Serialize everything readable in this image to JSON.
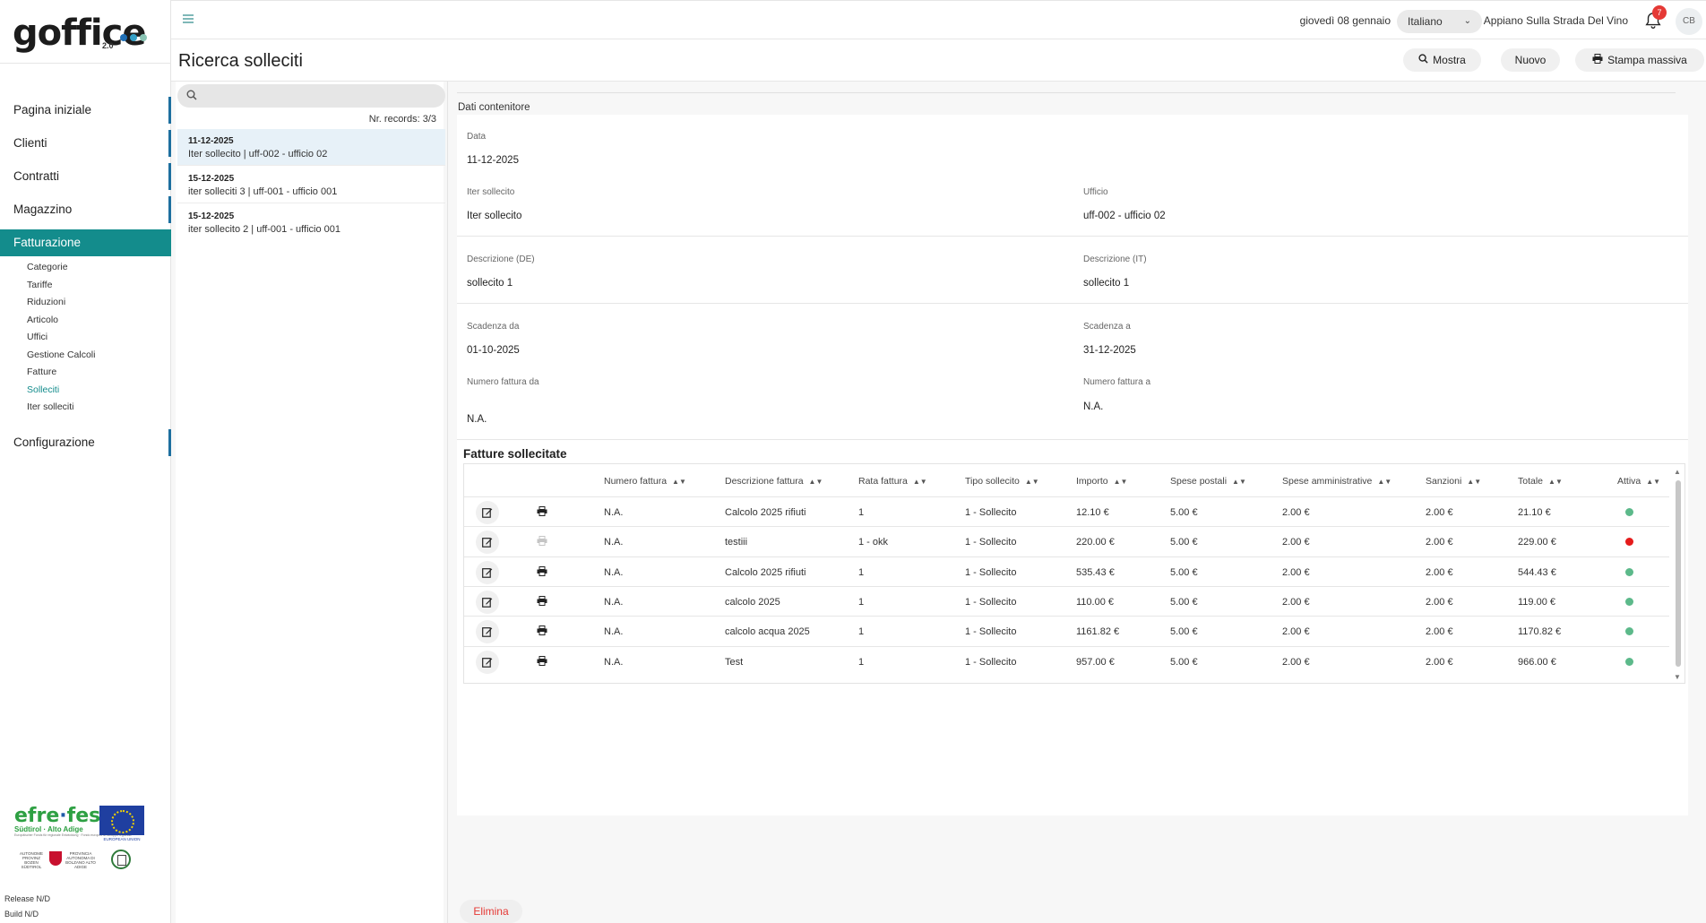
{
  "brand": {
    "name": "goffice",
    "version": "2.0",
    "dot_colors": [
      "#1f6fb5",
      "#35a0c7",
      "#8ac4b4"
    ]
  },
  "nav": {
    "items": [
      {
        "label": "Pagina iniziale",
        "bar": true,
        "active": false
      },
      {
        "label": "Clienti",
        "bar": true,
        "active": false
      },
      {
        "label": "Contratti",
        "bar": true,
        "active": false
      },
      {
        "label": "Magazzino",
        "bar": true,
        "active": false
      },
      {
        "label": "Fatturazione",
        "bar": false,
        "active": true
      }
    ],
    "sub_items": [
      {
        "label": "Categorie",
        "active": false
      },
      {
        "label": "Tariffe",
        "active": false
      },
      {
        "label": "Riduzioni",
        "active": false
      },
      {
        "label": "Articolo",
        "active": false
      },
      {
        "label": "Uffici",
        "active": false
      },
      {
        "label": "Gestione Calcoli",
        "active": false
      },
      {
        "label": "Fatture",
        "active": false
      },
      {
        "label": "Solleciti",
        "active": true
      },
      {
        "label": "Iter solleciti",
        "active": false
      }
    ],
    "config_label": "Configurazione"
  },
  "footer": {
    "efre_green": "efre",
    "efre_sep": "·",
    "efre_blue": "fesr",
    "efre_region": "Südtirol · Alto Adige",
    "efre_tiny": "Europäischer Fonds für regionale Entwicklung · Fondo europeo di sviluppo regionale",
    "eu_caption": "EUROPEAN UNION",
    "prov_de": "AUTONOME PROVINZ BOZEN SÜDTIROL",
    "prov_it": "PROVINCIA AUTONOMA DI BOLZANO ALTO ADIGE",
    "release": "Release N/D",
    "build": "Build N/D"
  },
  "header": {
    "date": "giovedì 08 gennaio",
    "language": "Italiano",
    "organization": "Appiano Sulla Strada Del Vino",
    "notifications": "7",
    "avatar": "CB"
  },
  "page": {
    "title": "Ricerca solleciti",
    "buttons": {
      "mostra": "Mostra",
      "nuovo": "Nuovo",
      "stampa": "Stampa massiva"
    }
  },
  "list": {
    "records_label": "Nr. records: 3/3",
    "records": [
      {
        "date": "11-12-2025",
        "title": "Iter sollecito | uff-002 - ufficio 02",
        "selected": true
      },
      {
        "date": "15-12-2025",
        "title": "iter solleciti 3 | uff-001 - ufficio 001",
        "selected": false
      },
      {
        "date": "15-12-2025",
        "title": "iter sollecito 2 | uff-001 - ufficio 001",
        "selected": false
      }
    ]
  },
  "detail": {
    "section": "Dati contenitore",
    "data_label": "Data",
    "data_value": "11-12-2025",
    "iter_label": "Iter sollecito",
    "iter_value": "Iter sollecito",
    "ufficio_label": "Ufficio",
    "ufficio_value": "uff-002 - ufficio 02",
    "desc_de_label": "Descrizione (DE)",
    "desc_de_value": "sollecito 1",
    "desc_it_label": "Descrizione (IT)",
    "desc_it_value": "sollecito 1",
    "scad_da_label": "Scadenza da",
    "scad_da_value": "01-10-2025",
    "scad_a_label": "Scadenza a",
    "scad_a_value": "31-12-2025",
    "nf_da_label": "Numero fattura da",
    "nf_da_value": "N.A.",
    "nf_a_label": "Numero fattura a",
    "nf_a_value": "N.A.",
    "table_title": "Fatture sollecitate"
  },
  "table": {
    "columns": [
      "Numero fattura",
      "Descrizione fattura",
      "Rata fattura",
      "Tipo sollecito",
      "Importo",
      "Spese postali",
      "Spese amministrative",
      "Sanzioni",
      "Totale",
      "Attiva"
    ],
    "status_colors": {
      "active": "#5cb98a",
      "inactive": "#e51b1b"
    },
    "rows": [
      {
        "numero": "N.A.",
        "descrizione": "Calcolo 2025 rifiuti",
        "rata": "1",
        "tipo": "1 - Sollecito",
        "importo": "12.10 €",
        "spese_postali": "5.00 €",
        "spese_amm": "2.00 €",
        "sanzioni": "2.00 €",
        "totale": "21.10 €",
        "attiva": true,
        "print_enabled": true
      },
      {
        "numero": "N.A.",
        "descrizione": "testiii",
        "rata": "1 - okk",
        "tipo": "1 - Sollecito",
        "importo": "220.00 €",
        "spese_postali": "5.00 €",
        "spese_amm": "2.00 €",
        "sanzioni": "2.00 €",
        "totale": "229.00 €",
        "attiva": false,
        "print_enabled": false
      },
      {
        "numero": "N.A.",
        "descrizione": "Calcolo 2025 rifiuti",
        "rata": "1",
        "tipo": "1 - Sollecito",
        "importo": "535.43 €",
        "spese_postali": "5.00 €",
        "spese_amm": "2.00 €",
        "sanzioni": "2.00 €",
        "totale": "544.43 €",
        "attiva": true,
        "print_enabled": true
      },
      {
        "numero": "N.A.",
        "descrizione": "calcolo 2025",
        "rata": "1",
        "tipo": "1 - Sollecito",
        "importo": "110.00 €",
        "spese_postali": "5.00 €",
        "spese_amm": "2.00 €",
        "sanzioni": "2.00 €",
        "totale": "119.00 €",
        "attiva": true,
        "print_enabled": true
      },
      {
        "numero": "N.A.",
        "descrizione": "calcolo acqua 2025",
        "rata": "1",
        "tipo": "1 - Sollecito",
        "importo": "1161.82 €",
        "spese_postali": "5.00 €",
        "spese_amm": "2.00 €",
        "sanzioni": "2.00 €",
        "totale": "1170.82 €",
        "attiva": true,
        "print_enabled": true
      },
      {
        "numero": "N.A.",
        "descrizione": "Test",
        "rata": "1",
        "tipo": "1 - Sollecito",
        "importo": "957.00 €",
        "spese_postali": "5.00 €",
        "spese_amm": "2.00 €",
        "sanzioni": "2.00 €",
        "totale": "966.00 €",
        "attiva": true,
        "print_enabled": true
      }
    ]
  },
  "actions": {
    "elimina": "Elimina"
  }
}
